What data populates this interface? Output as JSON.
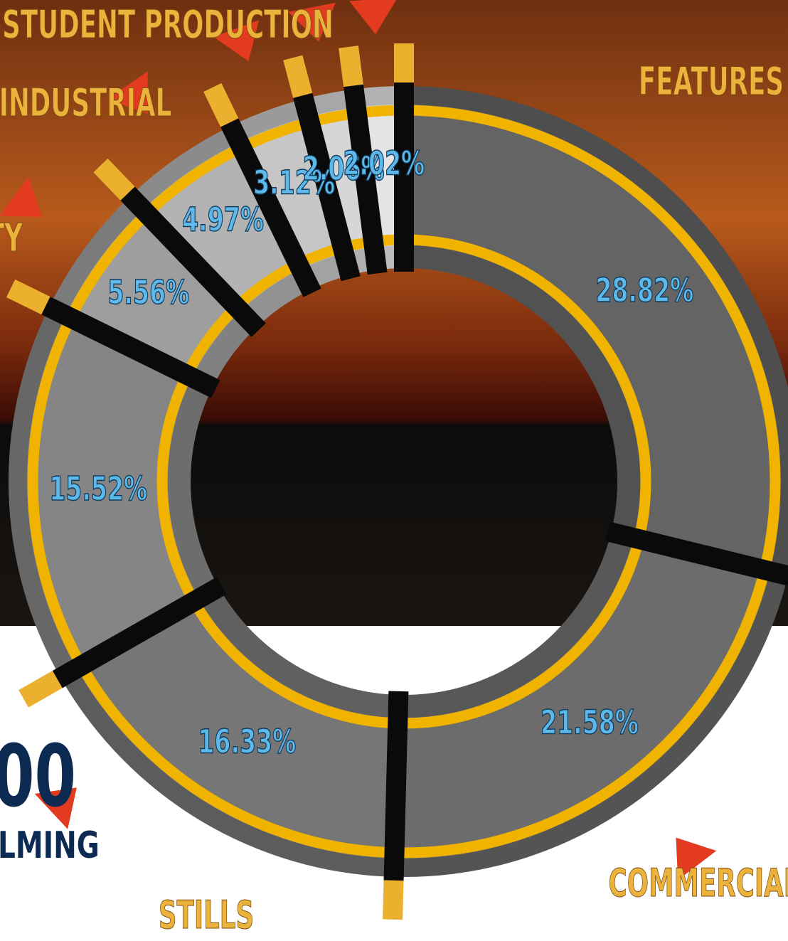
{
  "chart_data": {
    "type": "donut",
    "categories": [
      "FEATURES",
      null,
      "COMMERCIAL",
      "STILLS",
      null,
      null,
      "TY",
      "INDUSTRIAL",
      "STUDENT PRODUCTION"
    ],
    "values": [
      28.82,
      21.58,
      16.33,
      15.52,
      5.56,
      4.97,
      3.12,
      2.06,
      2.02
    ],
    "value_labels": [
      "28.82%",
      "21.58%",
      "16.33%",
      "15.52%",
      "5.56%",
      "4.97%",
      "3.12%",
      "2.06%",
      "2.02%"
    ],
    "colors": [
      "#646464",
      "#6c6c6c",
      "#767676",
      "#858585",
      "#9e9e9e",
      "#b3b3b3",
      "#c6c6c6",
      "#d6d6d6",
      "#e4e4e4"
    ],
    "annotations": [
      "00",
      "LMING"
    ]
  }
}
